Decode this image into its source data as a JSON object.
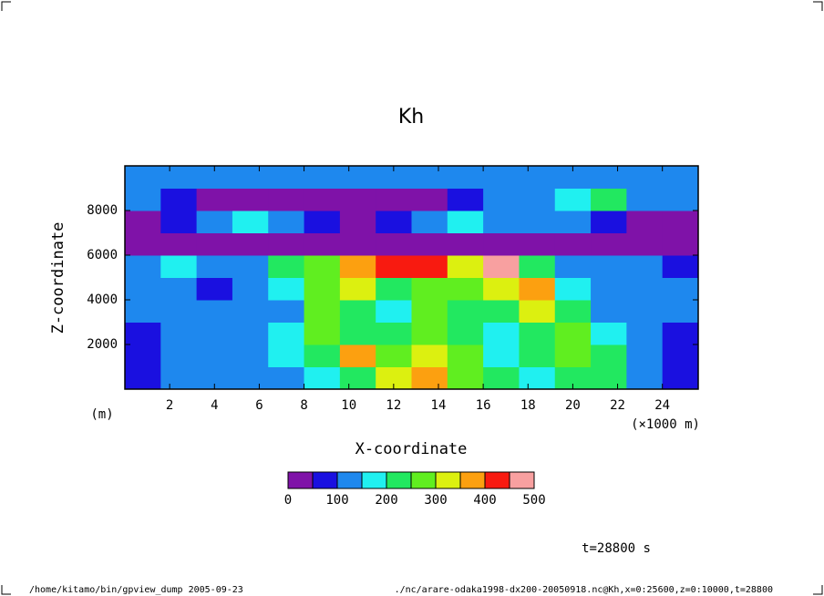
{
  "chart_data": {
    "type": "contour",
    "title": "Kh",
    "x_label": "X-coordinate",
    "x_unit": "(×1000 m)",
    "y_label": "Z-coordinate",
    "y_unit": "(m)",
    "xlim": [
      0,
      25600
    ],
    "ylim": [
      0,
      10000
    ],
    "xticks": [
      {
        "value": 2000,
        "label": "2"
      },
      {
        "value": 4000,
        "label": "4"
      },
      {
        "value": 6000,
        "label": "6"
      },
      {
        "value": 8000,
        "label": "8"
      },
      {
        "value": 10000,
        "label": "10"
      },
      {
        "value": 12000,
        "label": "12"
      },
      {
        "value": 14000,
        "label": "14"
      },
      {
        "value": 16000,
        "label": "16"
      },
      {
        "value": 18000,
        "label": "18"
      },
      {
        "value": 20000,
        "label": "20"
      },
      {
        "value": 22000,
        "label": "22"
      },
      {
        "value": 24000,
        "label": "24"
      }
    ],
    "yticks": [
      2000,
      4000,
      6000,
      8000
    ],
    "x": [
      800,
      2400,
      4000,
      5600,
      7200,
      8800,
      10400,
      12000,
      13600,
      15200,
      16800,
      18400,
      20000,
      21600,
      23200,
      24800
    ],
    "y": [
      500,
      1500,
      2500,
      3500,
      4500,
      5500,
      6500,
      7500,
      8500,
      9500
    ],
    "values": [
      [
        60,
        110,
        120,
        110,
        140,
        160,
        240,
        300,
        350,
        260,
        220,
        180,
        200,
        210,
        120,
        80
      ],
      [
        80,
        100,
        130,
        110,
        170,
        230,
        380,
        250,
        330,
        250,
        180,
        200,
        250,
        240,
        130,
        80
      ],
      [
        90,
        110,
        120,
        140,
        170,
        270,
        220,
        230,
        280,
        230,
        180,
        220,
        260,
        160,
        120,
        90
      ],
      [
        120,
        100,
        120,
        100,
        130,
        280,
        220,
        180,
        250,
        230,
        200,
        300,
        200,
        130,
        110,
        100
      ],
      [
        100,
        130,
        90,
        120,
        150,
        250,
        300,
        240,
        280,
        250,
        300,
        380,
        150,
        120,
        110,
        110
      ],
      [
        120,
        170,
        140,
        100,
        200,
        280,
        380,
        400,
        420,
        300,
        460,
        200,
        130,
        120,
        110,
        90
      ],
      [
        30,
        30,
        30,
        30,
        30,
        30,
        30,
        30,
        30,
        30,
        30,
        40,
        30,
        30,
        30,
        30
      ],
      [
        30,
        60,
        130,
        150,
        120,
        60,
        40,
        60,
        120,
        150,
        130,
        110,
        100,
        60,
        40,
        40
      ],
      [
        100,
        60,
        30,
        30,
        30,
        30,
        30,
        40,
        40,
        60,
        100,
        120,
        180,
        220,
        130,
        100
      ],
      [
        120,
        120,
        120,
        120,
        120,
        120,
        110,
        120,
        120,
        120,
        120,
        130,
        120,
        110,
        120,
        120
      ]
    ],
    "levels": [
      0,
      50,
      100,
      150,
      200,
      250,
      300,
      350,
      400,
      450,
      500
    ],
    "colors": [
      "#7f12a8",
      "#1a10e0",
      "#1e88ee",
      "#20f0f0",
      "#22e860",
      "#60ee20",
      "#dcf010",
      "#fca010",
      "#f81a10",
      "#f8a0a0"
    ],
    "colorbar_ticks": [
      0,
      100,
      200,
      300,
      400,
      500
    ],
    "time_label": "t=28800 s",
    "footer_left": "/home/kitamo/bin/gpview_dump  2005-09-23",
    "footer_right": "./nc/arare-odaka1998-dx200-20050918.nc@Kh,x=0:25600,z=0:10000,t=28800"
  }
}
